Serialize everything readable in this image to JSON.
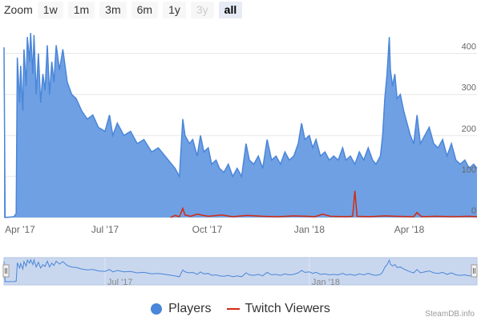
{
  "zoom": {
    "label": "Zoom",
    "buttons": [
      {
        "label": "1w",
        "state": "normal"
      },
      {
        "label": "1m",
        "state": "normal"
      },
      {
        "label": "3m",
        "state": "normal"
      },
      {
        "label": "6m",
        "state": "normal"
      },
      {
        "label": "1y",
        "state": "normal"
      },
      {
        "label": "3y",
        "state": "disabled"
      },
      {
        "label": "all",
        "state": "active"
      }
    ]
  },
  "credit": "SteamDB.info",
  "colors": {
    "players_line": "#4a86d9",
    "players_fill": "#6fa0e3",
    "twitch": "#d42a10",
    "navigator_fill": "#c9d7ee",
    "grid": "#e6e6e6"
  },
  "chart_data": {
    "type": "area",
    "title": "",
    "xlabel": "",
    "ylabel": "",
    "ylim": [
      0,
      460
    ],
    "yticks": [
      0,
      100,
      200,
      300,
      400
    ],
    "xticks": [
      {
        "date": "2017-04-01",
        "label": "Apr '17"
      },
      {
        "date": "2017-07-01",
        "label": "Jul '17"
      },
      {
        "date": "2017-10-01",
        "label": "Oct '17"
      },
      {
        "date": "2018-01-01",
        "label": "Jan '18"
      },
      {
        "date": "2018-04-01",
        "label": "Apr '18"
      }
    ],
    "navigator_xticks": [
      {
        "date": "2017-07-01",
        "label": "Jul '17"
      },
      {
        "date": "2018-01-01",
        "label": "Jan '18"
      }
    ],
    "xrange": [
      "2017-04-01",
      "2018-06-01"
    ],
    "legend_position": "bottom-center",
    "grid": true,
    "series": [
      {
        "name": "Players",
        "type": "area",
        "points": [
          [
            "2017-04-01",
            415
          ],
          [
            "2017-04-02",
            0
          ],
          [
            "2017-04-10",
            2
          ],
          [
            "2017-04-12",
            10
          ],
          [
            "2017-04-13",
            390
          ],
          [
            "2017-04-15",
            280
          ],
          [
            "2017-04-16",
            370
          ],
          [
            "2017-04-18",
            260
          ],
          [
            "2017-04-19",
            410
          ],
          [
            "2017-04-21",
            320
          ],
          [
            "2017-04-22",
            440
          ],
          [
            "2017-04-24",
            380
          ],
          [
            "2017-04-25",
            450
          ],
          [
            "2017-04-27",
            350
          ],
          [
            "2017-04-28",
            445
          ],
          [
            "2017-04-30",
            300
          ],
          [
            "2017-05-02",
            400
          ],
          [
            "2017-05-04",
            280
          ],
          [
            "2017-05-06",
            350
          ],
          [
            "2017-05-08",
            310
          ],
          [
            "2017-05-10",
            420
          ],
          [
            "2017-05-12",
            300
          ],
          [
            "2017-05-14",
            380
          ],
          [
            "2017-05-16",
            330
          ],
          [
            "2017-05-18",
            420
          ],
          [
            "2017-05-21",
            360
          ],
          [
            "2017-05-24",
            410
          ],
          [
            "2017-05-28",
            330
          ],
          [
            "2017-06-01",
            300
          ],
          [
            "2017-06-05",
            290
          ],
          [
            "2017-06-10",
            260
          ],
          [
            "2017-06-15",
            240
          ],
          [
            "2017-06-20",
            250
          ],
          [
            "2017-06-25",
            220
          ],
          [
            "2017-07-01",
            210
          ],
          [
            "2017-07-05",
            250
          ],
          [
            "2017-07-08",
            200
          ],
          [
            "2017-07-12",
            230
          ],
          [
            "2017-07-18",
            200
          ],
          [
            "2017-07-24",
            210
          ],
          [
            "2017-07-30",
            180
          ],
          [
            "2017-08-05",
            190
          ],
          [
            "2017-08-12",
            160
          ],
          [
            "2017-08-18",
            170
          ],
          [
            "2017-08-24",
            150
          ],
          [
            "2017-08-30",
            130
          ],
          [
            "2017-09-02",
            120
          ],
          [
            "2017-09-06",
            100
          ],
          [
            "2017-09-09",
            240
          ],
          [
            "2017-09-11",
            200
          ],
          [
            "2017-09-15",
            180
          ],
          [
            "2017-09-18",
            190
          ],
          [
            "2017-09-22",
            150
          ],
          [
            "2017-09-25",
            200
          ],
          [
            "2017-09-28",
            160
          ],
          [
            "2017-10-02",
            170
          ],
          [
            "2017-10-05",
            130
          ],
          [
            "2017-10-09",
            140
          ],
          [
            "2017-10-12",
            120
          ],
          [
            "2017-10-16",
            110
          ],
          [
            "2017-10-20",
            130
          ],
          [
            "2017-10-24",
            100
          ],
          [
            "2017-10-28",
            120
          ],
          [
            "2017-11-01",
            100
          ],
          [
            "2017-11-05",
            180
          ],
          [
            "2017-11-08",
            140
          ],
          [
            "2017-11-12",
            130
          ],
          [
            "2017-11-16",
            150
          ],
          [
            "2017-11-20",
            120
          ],
          [
            "2017-11-24",
            190
          ],
          [
            "2017-11-28",
            140
          ],
          [
            "2017-12-02",
            150
          ],
          [
            "2017-12-06",
            130
          ],
          [
            "2017-12-10",
            160
          ],
          [
            "2017-12-14",
            140
          ],
          [
            "2017-12-18",
            150
          ],
          [
            "2017-12-22",
            180
          ],
          [
            "2017-12-25",
            230
          ],
          [
            "2017-12-28",
            190
          ],
          [
            "2018-01-01",
            200
          ],
          [
            "2018-01-04",
            170
          ],
          [
            "2018-01-07",
            190
          ],
          [
            "2018-01-11",
            150
          ],
          [
            "2018-01-15",
            160
          ],
          [
            "2018-01-19",
            140
          ],
          [
            "2018-01-23",
            150
          ],
          [
            "2018-01-27",
            140
          ],
          [
            "2018-01-31",
            170
          ],
          [
            "2018-02-03",
            140
          ],
          [
            "2018-02-07",
            150
          ],
          [
            "2018-02-11",
            130
          ],
          [
            "2018-02-15",
            160
          ],
          [
            "2018-02-19",
            140
          ],
          [
            "2018-02-23",
            170
          ],
          [
            "2018-02-27",
            140
          ],
          [
            "2018-03-02",
            130
          ],
          [
            "2018-03-06",
            150
          ],
          [
            "2018-03-08",
            200
          ],
          [
            "2018-03-10",
            290
          ],
          [
            "2018-03-12",
            350
          ],
          [
            "2018-03-14",
            440
          ],
          [
            "2018-03-15",
            360
          ],
          [
            "2018-03-17",
            320
          ],
          [
            "2018-03-19",
            350
          ],
          [
            "2018-03-21",
            290
          ],
          [
            "2018-03-24",
            300
          ],
          [
            "2018-03-27",
            260
          ],
          [
            "2018-03-30",
            230
          ],
          [
            "2018-04-02",
            200
          ],
          [
            "2018-04-05",
            180
          ],
          [
            "2018-04-08",
            250
          ],
          [
            "2018-04-11",
            180
          ],
          [
            "2018-04-15",
            200
          ],
          [
            "2018-04-19",
            220
          ],
          [
            "2018-04-23",
            180
          ],
          [
            "2018-04-27",
            170
          ],
          [
            "2018-05-01",
            190
          ],
          [
            "2018-05-05",
            150
          ],
          [
            "2018-05-09",
            180
          ],
          [
            "2018-05-13",
            140
          ],
          [
            "2018-05-17",
            130
          ],
          [
            "2018-05-21",
            140
          ],
          [
            "2018-05-25",
            120
          ],
          [
            "2018-05-29",
            130
          ],
          [
            "2018-06-01",
            120
          ]
        ]
      },
      {
        "name": "Twitch Viewers",
        "type": "line",
        "points": [
          [
            "2017-08-29",
            0
          ],
          [
            "2017-09-02",
            5
          ],
          [
            "2017-09-06",
            2
          ],
          [
            "2017-09-09",
            22
          ],
          [
            "2017-09-11",
            6
          ],
          [
            "2017-09-16",
            3
          ],
          [
            "2017-09-22",
            8
          ],
          [
            "2017-10-02",
            3
          ],
          [
            "2017-10-14",
            6
          ],
          [
            "2017-10-24",
            2
          ],
          [
            "2017-11-06",
            5
          ],
          [
            "2017-11-20",
            3
          ],
          [
            "2017-12-04",
            2
          ],
          [
            "2017-12-18",
            4
          ],
          [
            "2017-12-30",
            3
          ],
          [
            "2018-01-06",
            2
          ],
          [
            "2018-01-13",
            8
          ],
          [
            "2018-01-20",
            3
          ],
          [
            "2018-02-03",
            2
          ],
          [
            "2018-02-09",
            3
          ],
          [
            "2018-02-11",
            65
          ],
          [
            "2018-02-13",
            3
          ],
          [
            "2018-02-24",
            2
          ],
          [
            "2018-03-10",
            4
          ],
          [
            "2018-03-20",
            3
          ],
          [
            "2018-04-05",
            2
          ],
          [
            "2018-04-08",
            12
          ],
          [
            "2018-04-12",
            2
          ],
          [
            "2018-04-25",
            3
          ],
          [
            "2018-05-10",
            2
          ],
          [
            "2018-05-25",
            3
          ],
          [
            "2018-06-01",
            2
          ]
        ]
      }
    ]
  }
}
